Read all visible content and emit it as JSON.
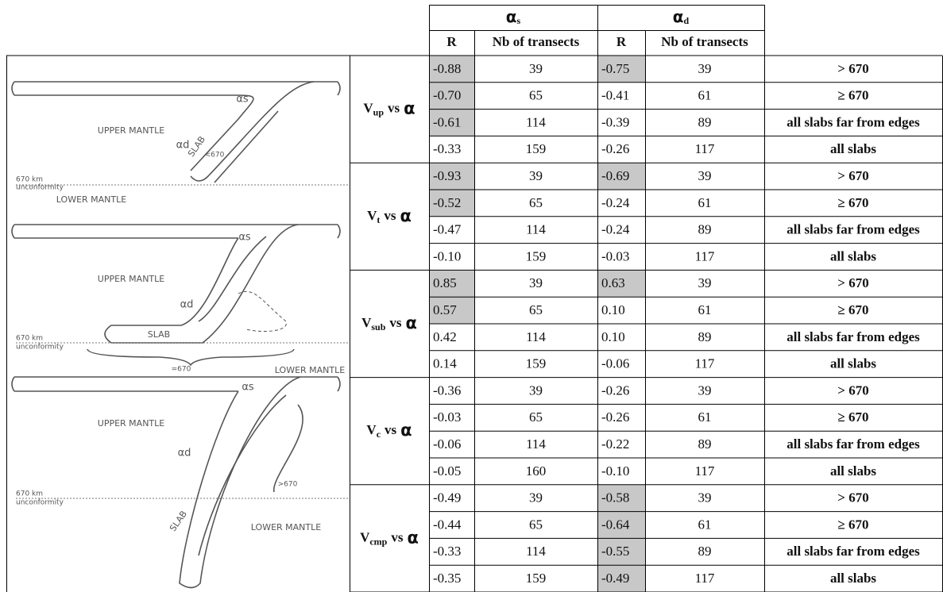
{
  "header": {
    "alpha_s": {
      "symbol": "α",
      "sub": "s"
    },
    "alpha_d": {
      "symbol": "α",
      "sub": "d"
    },
    "columns": [
      "R",
      "Nb of transects",
      "R",
      "Nb of transects"
    ]
  },
  "groups": [
    {
      "var": "V",
      "sub": "up",
      "vs": "vs",
      "symbol": "α",
      "rows": [
        {
          "cells": [
            "-0.88",
            "39",
            "-0.75",
            "39",
            "> 670"
          ],
          "shade": [
            true,
            true
          ]
        },
        {
          "cells": [
            "-0.70",
            "65",
            "-0.41",
            "61",
            "≥ 670"
          ],
          "shade": [
            true,
            false
          ]
        },
        {
          "cells": [
            "-0.61",
            "114",
            "-0.39",
            "89",
            "all slabs far from edges"
          ],
          "shade": [
            true,
            false
          ]
        },
        {
          "cells": [
            "-0.33",
            "159",
            "-0.26",
            "117",
            "all slabs"
          ],
          "shade": [
            false,
            false
          ]
        }
      ]
    },
    {
      "var": "V",
      "sub": "t",
      "vs": "vs",
      "symbol": "α",
      "rows": [
        {
          "cells": [
            "-0.93",
            "39",
            "-0.69",
            "39",
            "> 670"
          ],
          "shade": [
            true,
            true
          ]
        },
        {
          "cells": [
            "-0.52",
            "65",
            "-0.24",
            "61",
            "≥ 670"
          ],
          "shade": [
            true,
            false
          ]
        },
        {
          "cells": [
            "-0.47",
            "114",
            "-0.24",
            "89",
            "all slabs far from edges"
          ],
          "shade": [
            false,
            false
          ]
        },
        {
          "cells": [
            "-0.10",
            "159",
            "-0.03",
            "117",
            "all slabs"
          ],
          "shade": [
            false,
            false
          ]
        }
      ]
    },
    {
      "var": "V",
      "sub": "sub",
      "vs": "vs",
      "symbol": "α",
      "rows": [
        {
          "cells": [
            "0.85",
            "39",
            "0.63",
            "39",
            "> 670"
          ],
          "shade": [
            true,
            true
          ]
        },
        {
          "cells": [
            "0.57",
            "65",
            "0.10",
            "61",
            "≥ 670"
          ],
          "shade": [
            true,
            false
          ]
        },
        {
          "cells": [
            "0.42",
            "114",
            "0.10",
            "89",
            "all slabs far from edges"
          ],
          "shade": [
            false,
            false
          ]
        },
        {
          "cells": [
            "0.14",
            "159",
            "-0.06",
            "117",
            "all slabs"
          ],
          "shade": [
            false,
            false
          ]
        }
      ]
    },
    {
      "var": "V",
      "sub": "c",
      "vs": "vs",
      "symbol": "α",
      "rows": [
        {
          "cells": [
            "-0.36",
            "39",
            "-0.26",
            "39",
            "> 670"
          ],
          "shade": [
            false,
            false
          ]
        },
        {
          "cells": [
            "-0.03",
            "65",
            "-0.26",
            "61",
            "≥ 670"
          ],
          "shade": [
            false,
            false
          ]
        },
        {
          "cells": [
            "-0.06",
            "114",
            "-0.22",
            "89",
            "all slabs far from edges"
          ],
          "shade": [
            false,
            false
          ]
        },
        {
          "cells": [
            "-0.05",
            "160",
            "-0.10",
            "117",
            "all slabs"
          ],
          "shade": [
            false,
            false
          ]
        }
      ]
    },
    {
      "var": "V",
      "sub": "cmp",
      "vs": "vs",
      "symbol": "α",
      "rows": [
        {
          "cells": [
            "-0.49",
            "39",
            "-0.58",
            "39",
            "> 670"
          ],
          "shade": [
            false,
            true
          ]
        },
        {
          "cells": [
            "-0.44",
            "65",
            "-0.64",
            "61",
            "≥ 670"
          ],
          "shade": [
            false,
            true
          ]
        },
        {
          "cells": [
            "-0.33",
            "114",
            "-0.55",
            "89",
            "all slabs far from edges"
          ],
          "shade": [
            false,
            true
          ]
        },
        {
          "cells": [
            "-0.35",
            "159",
            "-0.49",
            "117",
            "all slabs"
          ],
          "shade": [
            false,
            true
          ]
        }
      ]
    }
  ],
  "diagrams": [
    {
      "alpha_s": "αs",
      "alpha_d": "αd",
      "upper": "UPPER MANTLE",
      "lower": "LOWER MANTLE",
      "slab": "SLAB",
      "depth": "<670",
      "km": "670 km",
      "unconformity": "unconformity"
    },
    {
      "alpha_s": "αs",
      "alpha_d": "αd",
      "upper": "UPPER MANTLE",
      "lower": "LOWER MANTLE",
      "slab": "SLAB",
      "depth": "=670",
      "km": "670 km",
      "unconformity": "unconformity"
    },
    {
      "alpha_s": "αs",
      "alpha_d": "αd",
      "upper": "UPPER MANTLE",
      "lower": "LOWER MANTLE",
      "slab": "SLAB",
      "depth": ">670",
      "km": "670 km",
      "unconformity": "unconformity"
    }
  ]
}
